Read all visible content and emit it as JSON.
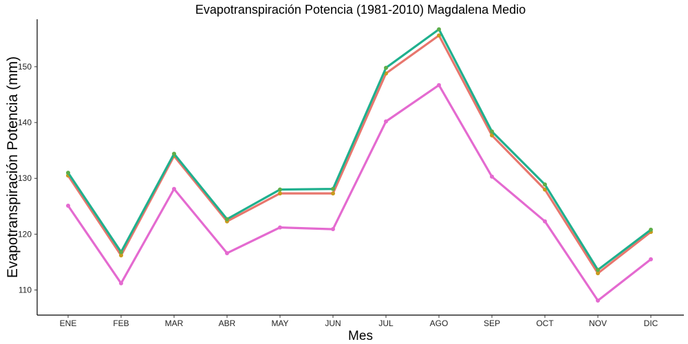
{
  "chart_data": {
    "type": "line",
    "title": "Evapotranspiración Potencia (1981-2010)  Magdalena Medio",
    "xlabel": "Mes",
    "ylabel": "Evapotranspiración Potencia  (mm)",
    "categories": [
      "ENE",
      "FEB",
      "MAR",
      "ABR",
      "MAY",
      "JUN",
      "JUL",
      "AGO",
      "SEP",
      "OCT",
      "NOV",
      "DIC"
    ],
    "ylim": [
      105.5,
      158.5
    ],
    "yticks": [
      110,
      120,
      130,
      140,
      150
    ],
    "grid": false,
    "legend": "none",
    "series": [
      {
        "color": "#E8766D",
        "marker_color": "#C99A1E",
        "values": [
          130.5,
          116.2,
          134.0,
          122.3,
          127.3,
          127.3,
          148.8,
          155.6,
          137.7,
          128.0,
          113.0,
          120.4
        ]
      },
      {
        "color": "#1FB08E",
        "marker_color": "#5DAE4A",
        "values": [
          131.0,
          116.8,
          134.4,
          122.7,
          128.0,
          128.1,
          149.8,
          156.7,
          138.4,
          128.9,
          113.6,
          120.8
        ]
      },
      {
        "color": "#E46AD0",
        "marker_color": "#E46AD0",
        "values": [
          125.1,
          111.2,
          128.1,
          116.6,
          121.2,
          120.9,
          140.2,
          146.7,
          130.3,
          122.3,
          108.1,
          115.5
        ]
      }
    ]
  }
}
